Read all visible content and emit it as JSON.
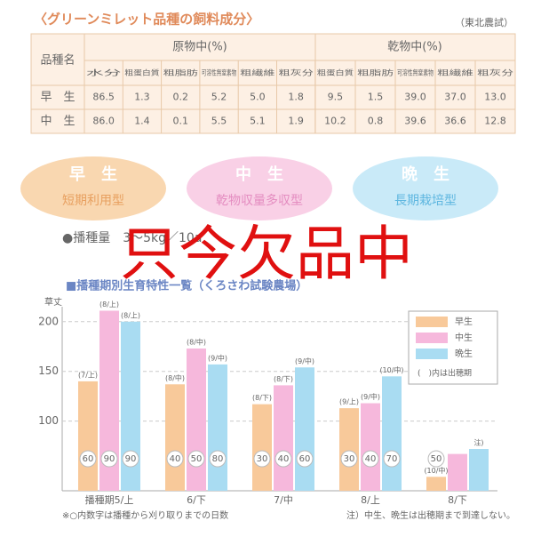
{
  "header": {
    "title": "〈グリーンミレット品種の飼料成分〉",
    "source": "（東北農試）"
  },
  "table": {
    "variety_header": "品種名",
    "group_headers": [
      "原物中(%)",
      "乾物中(%)"
    ],
    "columns": [
      "水分",
      "粗蛋白質",
      "粗脂肪",
      "可溶性無窒素物",
      "粗繊維",
      "粗灰分",
      "粗蛋白質",
      "粗脂肪",
      "可溶性無窒素物",
      "粗繊維",
      "粗灰分"
    ],
    "rows": [
      [
        "早　生",
        "86.5",
        "1.3",
        "0.2",
        "5.2",
        "5.0",
        "1.8",
        "9.5",
        "1.5",
        "39.0",
        "37.0",
        "13.0"
      ],
      [
        "中　生",
        "86.0",
        "1.4",
        "0.1",
        "5.5",
        "5.1",
        "1.9",
        "10.2",
        "0.8",
        "39.6",
        "36.6",
        "12.8"
      ]
    ]
  },
  "types": [
    {
      "name": "早　生",
      "desc": "短期利用型"
    },
    {
      "name": "中　生",
      "desc": "乾物収量多収型"
    },
    {
      "name": "晩　生",
      "desc": "長期栽培型"
    }
  ],
  "seeding": "●播種量　3～5kg／10a",
  "chart_heading": "■播種期別生育特性一覧（くろさわ試験農場）",
  "overlay": "只今欠品中",
  "chart_data": {
    "type": "bar",
    "y_label": "草丈",
    "categories": [
      "播種期5/上",
      "6/下",
      "7/中",
      "8/上",
      "8/下"
    ],
    "ylim": [
      30,
      215
    ],
    "yticks": [
      100,
      150,
      200
    ],
    "series": [
      {
        "name": "早生",
        "color": "#f8c99a",
        "values": [
          140,
          137,
          117,
          113,
          44
        ],
        "heading_labels": [
          "(7/上)",
          "(8/中)",
          "(8/下)",
          "(9/上)",
          "(10/中)"
        ],
        "days": [
          "60",
          "40",
          "30",
          "30",
          "50"
        ]
      },
      {
        "name": "中生",
        "color": "#f6b8dc",
        "values": [
          211,
          173,
          136,
          118,
          67
        ],
        "heading_labels": [
          "(8/上)",
          "(8/中)",
          "(8/下)",
          "(9/中)",
          null
        ],
        "days": [
          "90",
          "50",
          "40",
          "40",
          null
        ]
      },
      {
        "name": "晩生",
        "color": "#a9dcf2",
        "values": [
          200,
          157,
          154,
          145,
          72
        ],
        "heading_labels": [
          "(8/上)",
          "(9/中)",
          "(9/中)",
          "(10/中)",
          "注)"
        ],
        "days": [
          "90",
          "80",
          "60",
          "70",
          null
        ]
      }
    ],
    "legend_note": "(　)内は出穂期",
    "notes": [
      "※○内数字は播種から刈り取りまでの日数",
      "注）中生、晩生は出穂期まで到達しない。"
    ]
  }
}
